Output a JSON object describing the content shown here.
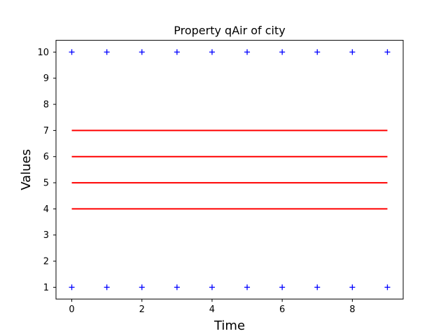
{
  "chart_data": {
    "type": "line",
    "title": "Property qAir of city",
    "xlabel": "Time",
    "ylabel": "Values",
    "xlim": [
      -0.45,
      9.45
    ],
    "ylim": [
      0.55,
      10.45
    ],
    "xticks": [
      0,
      2,
      4,
      6,
      8
    ],
    "yticks": [
      1,
      2,
      3,
      4,
      5,
      6,
      7,
      8,
      9,
      10
    ],
    "x": [
      0,
      1,
      2,
      3,
      4,
      5,
      6,
      7,
      8,
      9
    ],
    "grid": false,
    "series": [
      {
        "style": "marker-plus",
        "color": "#0000ff",
        "values": [
          1,
          1,
          1,
          1,
          1,
          1,
          1,
          1,
          1,
          1
        ]
      },
      {
        "style": "marker-plus",
        "color": "#0000ff",
        "values": [
          10,
          10,
          10,
          10,
          10,
          10,
          10,
          10,
          10,
          10
        ]
      },
      {
        "style": "line",
        "color": "#ff0000",
        "values": [
          4,
          4,
          4,
          4,
          4,
          4,
          4,
          4,
          4,
          4
        ]
      },
      {
        "style": "line",
        "color": "#ff0000",
        "values": [
          5,
          5,
          5,
          5,
          5,
          5,
          5,
          5,
          5,
          5
        ]
      },
      {
        "style": "line",
        "color": "#ff0000",
        "values": [
          6,
          6,
          6,
          6,
          6,
          6,
          6,
          6,
          6,
          6
        ]
      },
      {
        "style": "line",
        "color": "#ff0000",
        "values": [
          7,
          7,
          7,
          7,
          7,
          7,
          7,
          7,
          7,
          7
        ]
      }
    ]
  }
}
